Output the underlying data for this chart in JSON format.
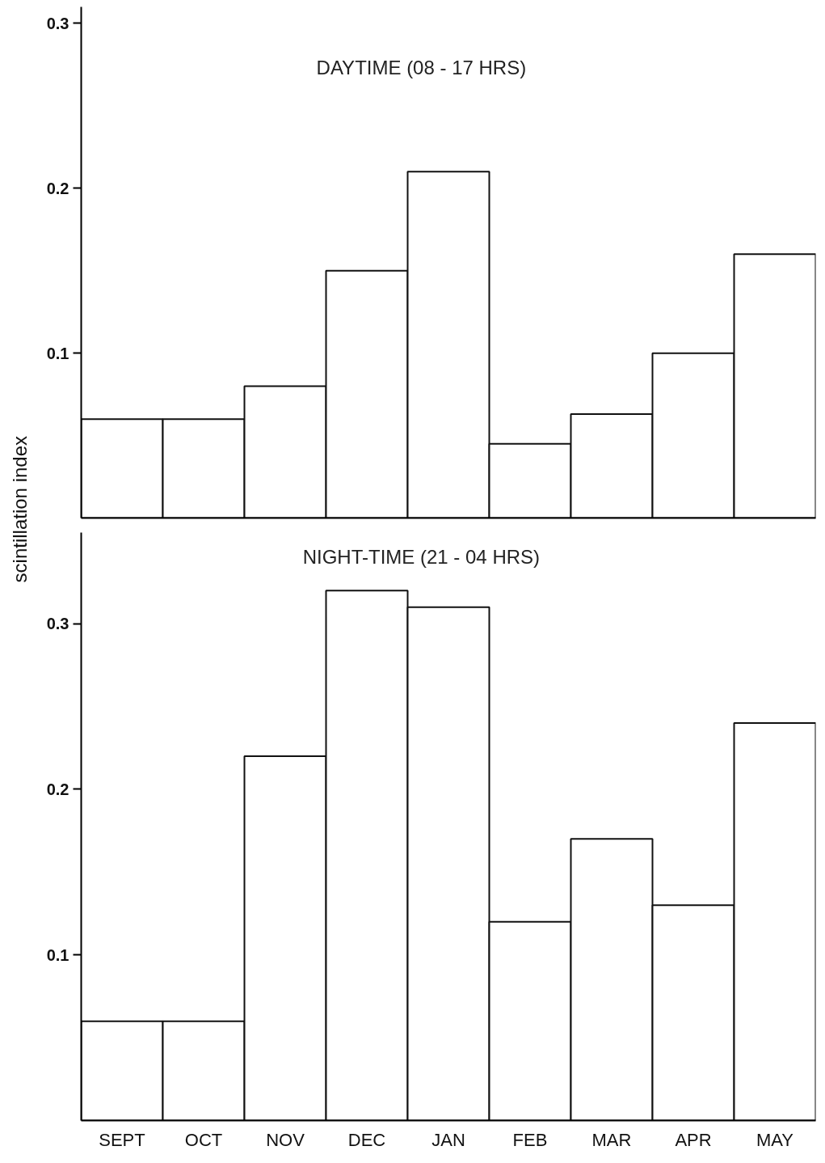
{
  "chart_data": [
    {
      "type": "bar",
      "title": "DAYTIME  (08 - 17 HRS)",
      "ylabel": "scintillation index",
      "categories": [
        null,
        null,
        null,
        null,
        null,
        null,
        null,
        null,
        null
      ],
      "values": [
        0.06,
        0.06,
        0.08,
        0.15,
        0.21,
        0.045,
        0.063,
        0.1,
        0.16
      ],
      "color": "#ffffff",
      "ylim": [
        0,
        0.31
      ],
      "yticks": [
        0.1,
        0.2,
        0.3
      ],
      "grid": false
    },
    {
      "type": "bar",
      "title": "NIGHT-TIME  (21 - 04 HRS)",
      "categories": [
        "SEPT",
        "OCT",
        "NOV",
        "DEC",
        "JAN",
        "FEB",
        "MAR",
        "APR",
        "MAY"
      ],
      "values": [
        0.06,
        0.06,
        0.22,
        0.32,
        0.31,
        0.12,
        0.17,
        0.13,
        0.24
      ],
      "color": "#ffffff",
      "ylim": [
        0,
        0.355
      ],
      "yticks": [
        0.1,
        0.2,
        0.3
      ],
      "grid": false
    }
  ]
}
